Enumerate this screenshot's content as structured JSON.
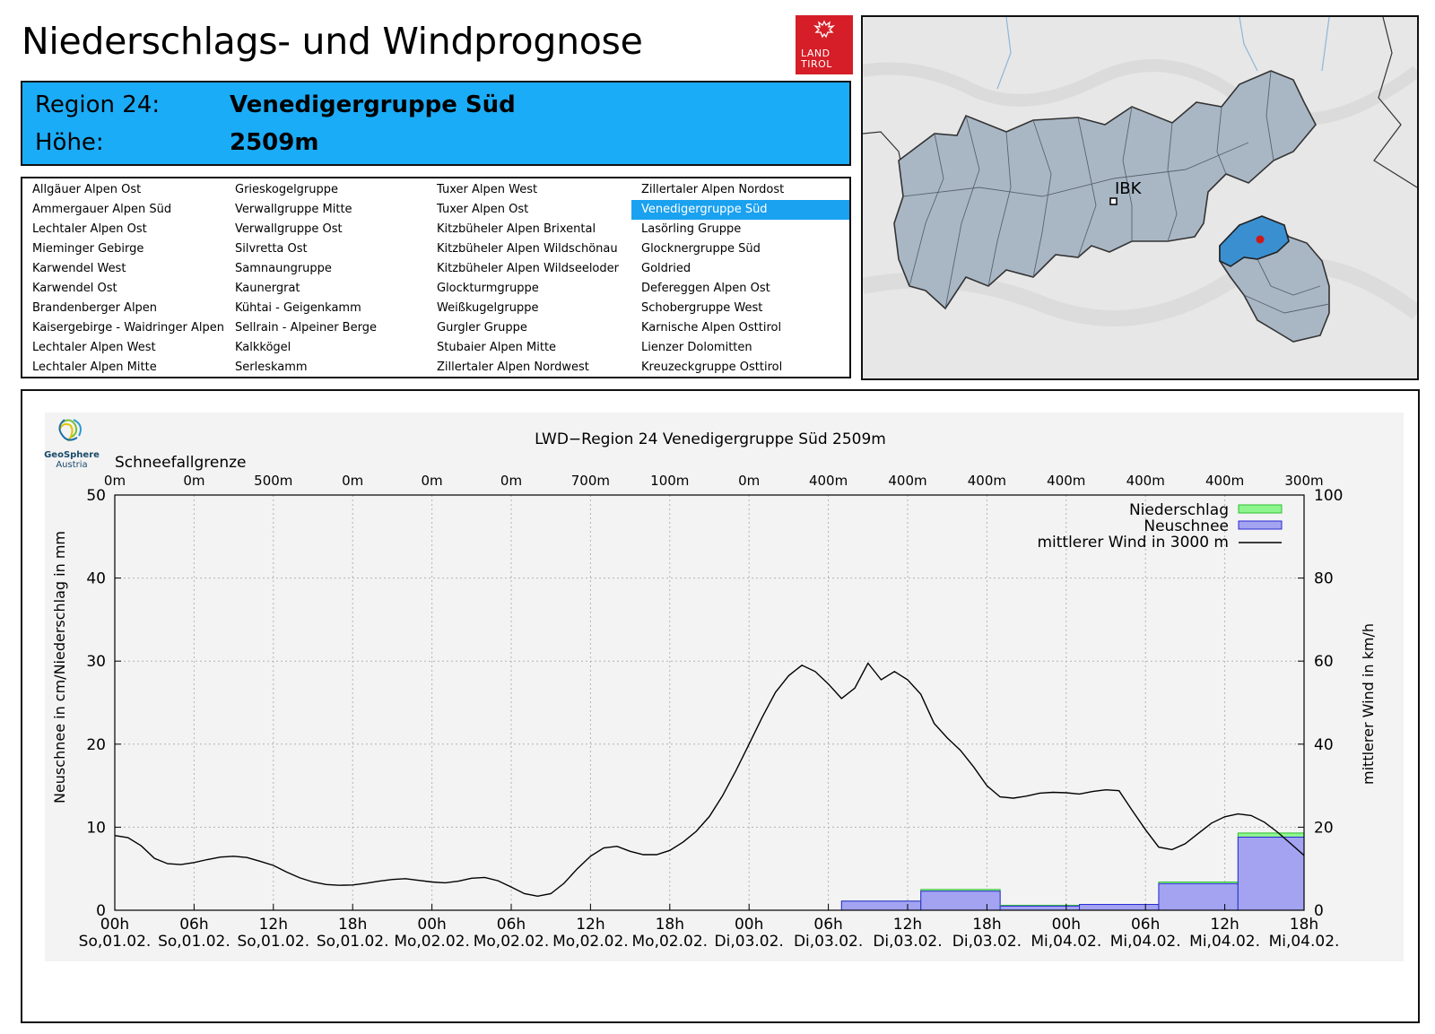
{
  "header": {
    "title": "Niederschlags- und Windprognose",
    "logo_line1": "LAND",
    "logo_line2": "TIROL"
  },
  "region": {
    "region_label": "Region 24:",
    "region_name": "Venedigergruppe Süd",
    "height_label": "Höhe:",
    "height_value": "2509m"
  },
  "region_list": {
    "selected": "Venedigergruppe Süd",
    "columns": [
      [
        "Allgäuer Alpen Ost",
        "Ammergauer Alpen Süd",
        "Lechtaler Alpen Ost",
        "Mieminger Gebirge",
        "Karwendel West",
        "Karwendel Ost",
        "Brandenberger Alpen",
        "Kaisergebirge - Waidringer Alpen",
        "Lechtaler Alpen West",
        "Lechtaler Alpen Mitte"
      ],
      [
        "Grieskogelgruppe",
        "Verwallgruppe Mitte",
        "Verwallgruppe Ost",
        "Silvretta Ost",
        "Samnaungruppe",
        "Kaunergrat",
        "Kühtai - Geigenkamm",
        "Sellrain - Alpeiner Berge",
        "Kalkkögel",
        "Serleskamm"
      ],
      [
        "Tuxer Alpen West",
        "Tuxer Alpen Ost",
        "Kitzbüheler Alpen Brixental",
        "Kitzbüheler Alpen Wildschönau",
        "Kitzbüheler Alpen Wildseeloder",
        "Glockturmgruppe",
        "Weißkugelgruppe",
        "Gurgler Gruppe",
        "Stubaier Alpen Mitte",
        "Zillertaler Alpen Nordwest"
      ],
      [
        "Zillertaler Alpen Nordost",
        "Venedigergruppe Süd",
        "Lasörling Gruppe",
        "Glocknergruppe Süd",
        "Goldried",
        "Defereggen Alpen Ost",
        "Schobergruppe West",
        "Karnische Alpen Osttirol",
        "Lienzer Dolomitten",
        "Kreuzeckgruppe Osttirol"
      ]
    ]
  },
  "map": {
    "city_label": "IBK"
  },
  "logo_geosphere": {
    "line1": "GeoSphere",
    "line2": "Austria"
  },
  "chart_data": {
    "type": "bar+line",
    "title": "LWD−Region 24 Venedigergruppe Süd 2509m",
    "ylabel_left": "Neuschnee in cm/Niederschlag in mm",
    "ylabel_right": "mittlerer Wind in km/h",
    "ylim_left": [
      0,
      50
    ],
    "ylim_right": [
      0,
      100
    ],
    "yticks_left": [
      "0",
      "10",
      "20",
      "30",
      "40",
      "50"
    ],
    "yticks_right": [
      "0",
      "20",
      "40",
      "60",
      "80",
      "100"
    ],
    "x_hours_range": [
      0,
      90
    ],
    "xticks": [
      {
        "h": 0,
        "time": "00h",
        "day": "So,01.02."
      },
      {
        "h": 6,
        "time": "06h",
        "day": "So,01.02."
      },
      {
        "h": 12,
        "time": "12h",
        "day": "So,01.02."
      },
      {
        "h": 18,
        "time": "18h",
        "day": "So,01.02."
      },
      {
        "h": 24,
        "time": "00h",
        "day": "Mo,02.02."
      },
      {
        "h": 30,
        "time": "06h",
        "day": "Mo,02.02."
      },
      {
        "h": 36,
        "time": "12h",
        "day": "Mo,02.02."
      },
      {
        "h": 42,
        "time": "18h",
        "day": "Mo,02.02."
      },
      {
        "h": 48,
        "time": "00h",
        "day": "Di,03.02."
      },
      {
        "h": 54,
        "time": "06h",
        "day": "Di,03.02."
      },
      {
        "h": 60,
        "time": "12h",
        "day": "Di,03.02."
      },
      {
        "h": 66,
        "time": "18h",
        "day": "Di,03.02."
      },
      {
        "h": 72,
        "time": "00h",
        "day": "Mi,04.02."
      },
      {
        "h": 78,
        "time": "06h",
        "day": "Mi,04.02."
      },
      {
        "h": 84,
        "time": "12h",
        "day": "Mi,04.02."
      },
      {
        "h": 90,
        "time": "18h",
        "day": "Mi,04.02."
      }
    ],
    "snowline_label": "Schneefallgrenze",
    "snowline": [
      {
        "h": 0,
        "v": "0m"
      },
      {
        "h": 6,
        "v": "0m"
      },
      {
        "h": 12,
        "v": "500m"
      },
      {
        "h": 18,
        "v": "0m"
      },
      {
        "h": 24,
        "v": "0m"
      },
      {
        "h": 30,
        "v": "0m"
      },
      {
        "h": 36,
        "v": "700m"
      },
      {
        "h": 42,
        "v": "100m"
      },
      {
        "h": 48,
        "v": "0m"
      },
      {
        "h": 54,
        "v": "400m"
      },
      {
        "h": 60,
        "v": "400m"
      },
      {
        "h": 66,
        "v": "400m"
      },
      {
        "h": 72,
        "v": "400m"
      },
      {
        "h": 78,
        "v": "400m"
      },
      {
        "h": 84,
        "v": "400m"
      },
      {
        "h": 90,
        "v": "300m"
      }
    ],
    "legend": {
      "niederschlag": "Niederschlag",
      "neuschnee": "Neuschnee",
      "wind": "mittlerer Wind in 3000 m"
    },
    "bars": [
      {
        "from": 55,
        "to": 61,
        "niederschlag": 1.1,
        "neuschnee": 1.1
      },
      {
        "from": 61,
        "to": 67,
        "niederschlag": 2.5,
        "neuschnee": 2.3
      },
      {
        "from": 67,
        "to": 73,
        "niederschlag": 0.6,
        "neuschnee": 0.5
      },
      {
        "from": 73,
        "to": 79,
        "niederschlag": 0.7,
        "neuschnee": 0.7
      },
      {
        "from": 79,
        "to": 85,
        "niederschlag": 3.4,
        "neuschnee": 3.2
      },
      {
        "from": 85,
        "to": 91,
        "niederschlag": 9.3,
        "neuschnee": 8.8
      }
    ],
    "wind": [
      [
        0,
        18
      ],
      [
        1,
        17.5
      ],
      [
        2,
        15.5
      ],
      [
        3,
        12.5
      ],
      [
        4,
        11.2
      ],
      [
        5,
        11
      ],
      [
        6,
        11.5
      ],
      [
        7,
        12.2
      ],
      [
        8,
        12.8
      ],
      [
        9,
        13
      ],
      [
        10,
        12.7
      ],
      [
        11,
        11.8
      ],
      [
        12,
        10.8
      ],
      [
        13,
        9.2
      ],
      [
        14,
        7.8
      ],
      [
        15,
        6.8
      ],
      [
        16,
        6.2
      ],
      [
        17,
        6
      ],
      [
        18,
        6.1
      ],
      [
        19,
        6.5
      ],
      [
        20,
        7
      ],
      [
        21,
        7.4
      ],
      [
        22,
        7.6
      ],
      [
        23,
        7.2
      ],
      [
        24,
        6.8
      ],
      [
        25,
        6.6
      ],
      [
        26,
        7
      ],
      [
        27,
        7.7
      ],
      [
        28,
        7.9
      ],
      [
        29,
        7.1
      ],
      [
        30,
        5.6
      ],
      [
        31,
        4
      ],
      [
        32,
        3.4
      ],
      [
        33,
        4
      ],
      [
        34,
        6.5
      ],
      [
        35,
        10
      ],
      [
        36,
        13
      ],
      [
        37,
        15
      ],
      [
        38,
        15.4
      ],
      [
        39,
        14.2
      ],
      [
        40,
        13.4
      ],
      [
        41,
        13.4
      ],
      [
        42,
        14.4
      ],
      [
        43,
        16.4
      ],
      [
        44,
        19
      ],
      [
        45,
        22.6
      ],
      [
        46,
        27.6
      ],
      [
        47,
        33.6
      ],
      [
        48,
        40
      ],
      [
        49,
        46.5
      ],
      [
        50,
        52.5
      ],
      [
        51,
        56.5
      ],
      [
        52,
        59
      ],
      [
        53,
        57.5
      ],
      [
        54,
        54.5
      ],
      [
        55,
        51
      ],
      [
        56,
        53.5
      ],
      [
        57,
        59.5
      ],
      [
        58,
        55.5
      ],
      [
        59,
        57.5
      ],
      [
        60,
        55.5
      ],
      [
        61,
        52
      ],
      [
        62,
        45
      ],
      [
        63,
        41.5
      ],
      [
        64,
        38.5
      ],
      [
        65,
        34.5
      ],
      [
        66,
        30
      ],
      [
        67,
        27.3
      ],
      [
        68,
        27
      ],
      [
        69,
        27.5
      ],
      [
        70,
        28.2
      ],
      [
        71,
        28.4
      ],
      [
        72,
        28.3
      ],
      [
        73,
        28
      ],
      [
        74,
        28.6
      ],
      [
        75,
        29
      ],
      [
        76,
        28.8
      ],
      [
        77,
        24
      ],
      [
        78,
        19.4
      ],
      [
        79,
        15.2
      ],
      [
        80,
        14.6
      ],
      [
        81,
        16
      ],
      [
        82,
        18.5
      ],
      [
        83,
        21
      ],
      [
        84,
        22.5
      ],
      [
        85,
        23.2
      ],
      [
        86,
        22.8
      ],
      [
        87,
        21.2
      ],
      [
        88,
        18.8
      ],
      [
        89,
        16
      ],
      [
        90,
        13.2
      ]
    ],
    "colors": {
      "niederschlag": "#8ef58e",
      "neuschnee": "#a3a3f2",
      "neuschnee_edge": "#2a2ad6",
      "niederschlag_edge": "#2fbf2f",
      "wind": "#000000"
    }
  }
}
